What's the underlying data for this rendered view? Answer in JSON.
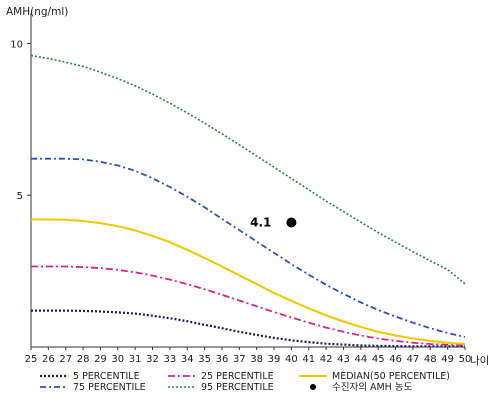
{
  "chart_data": {
    "type": "line",
    "ylabel": "AMH(ng/ml)",
    "xlabel": "나이",
    "xlim": [
      25,
      50
    ],
    "ylim": [
      0,
      11
    ],
    "x_ticks": [
      25,
      26,
      27,
      28,
      29,
      30,
      31,
      32,
      33,
      34,
      35,
      36,
      37,
      38,
      39,
      40,
      41,
      42,
      43,
      44,
      45,
      46,
      47,
      48,
      49,
      50
    ],
    "y_ticks": [
      5,
      10
    ],
    "x": [
      25,
      26,
      27,
      28,
      29,
      30,
      31,
      32,
      33,
      34,
      35,
      36,
      37,
      38,
      39,
      40,
      41,
      42,
      43,
      44,
      45,
      46,
      47,
      48,
      49,
      50
    ],
    "series": [
      {
        "name": "5 PERCENTILE",
        "color": "#1a1a66",
        "dash": "2,2",
        "width": 2.2,
        "values": [
          1.2,
          1.2,
          1.2,
          1.19,
          1.17,
          1.14,
          1.1,
          1.03,
          0.95,
          0.85,
          0.73,
          0.62,
          0.5,
          0.4,
          0.3,
          0.22,
          0.16,
          0.11,
          0.08,
          0.05,
          0.04,
          0.03,
          0.02,
          0.02,
          0.02,
          0.02
        ]
      },
      {
        "name": "25 PERCENTILE",
        "color": "#e0208a",
        "dash": "7,3,2,3",
        "width": 1.8,
        "values": [
          2.65,
          2.65,
          2.65,
          2.63,
          2.6,
          2.54,
          2.46,
          2.35,
          2.22,
          2.07,
          1.9,
          1.72,
          1.53,
          1.34,
          1.15,
          0.97,
          0.8,
          0.64,
          0.5,
          0.38,
          0.28,
          0.2,
          0.14,
          0.1,
          0.07,
          0.06
        ]
      },
      {
        "name": "MEDIAN(50 PERCENTILE)",
        "color": "#f0c800",
        "dash": "",
        "width": 2,
        "values": [
          4.2,
          4.2,
          4.19,
          4.15,
          4.08,
          3.98,
          3.84,
          3.66,
          3.45,
          3.2,
          2.93,
          2.65,
          2.36,
          2.07,
          1.78,
          1.52,
          1.27,
          1.04,
          0.84,
          0.66,
          0.5,
          0.38,
          0.28,
          0.2,
          0.14,
          0.1
        ]
      },
      {
        "name": "75 PERCENTILE",
        "color": "#3050c0",
        "dash": "6,3,2,3",
        "width": 1.8,
        "values": [
          6.2,
          6.2,
          6.2,
          6.18,
          6.1,
          5.98,
          5.8,
          5.56,
          5.27,
          4.95,
          4.6,
          4.22,
          3.85,
          3.47,
          3.1,
          2.73,
          2.38,
          2.05,
          1.75,
          1.47,
          1.22,
          1.0,
          0.8,
          0.62,
          0.46,
          0.33
        ]
      },
      {
        "name": "95 PERCENTILE",
        "color": "#208850",
        "dash": "2,2",
        "width": 1.6,
        "values": [
          9.6,
          9.5,
          9.38,
          9.24,
          9.05,
          8.84,
          8.6,
          8.33,
          8.03,
          7.71,
          7.37,
          7.02,
          6.66,
          6.29,
          5.92,
          5.55,
          5.18,
          4.81,
          4.46,
          4.11,
          3.77,
          3.45,
          3.14,
          2.84,
          2.55,
          2.08
        ]
      }
    ],
    "points": [
      {
        "name": "수진자의 AMH 농도",
        "x": 40,
        "y": 4.1,
        "label": "4.1",
        "color": "#000000"
      }
    ],
    "legend": {
      "placement": "bottom",
      "items": [
        {
          "label": "5 PERCENTILE",
          "series": 0
        },
        {
          "label": "25 PERCENTILE",
          "series": 1
        },
        {
          "label": "MEDIAN(50 PERCENTILE)",
          "series": 2
        },
        {
          "label": "75 PERCENTILE",
          "series": 3
        },
        {
          "label": "95 PERCENTILE",
          "series": 4
        },
        {
          "label": "수진자의 AMH 농도",
          "point": 0
        }
      ]
    }
  }
}
